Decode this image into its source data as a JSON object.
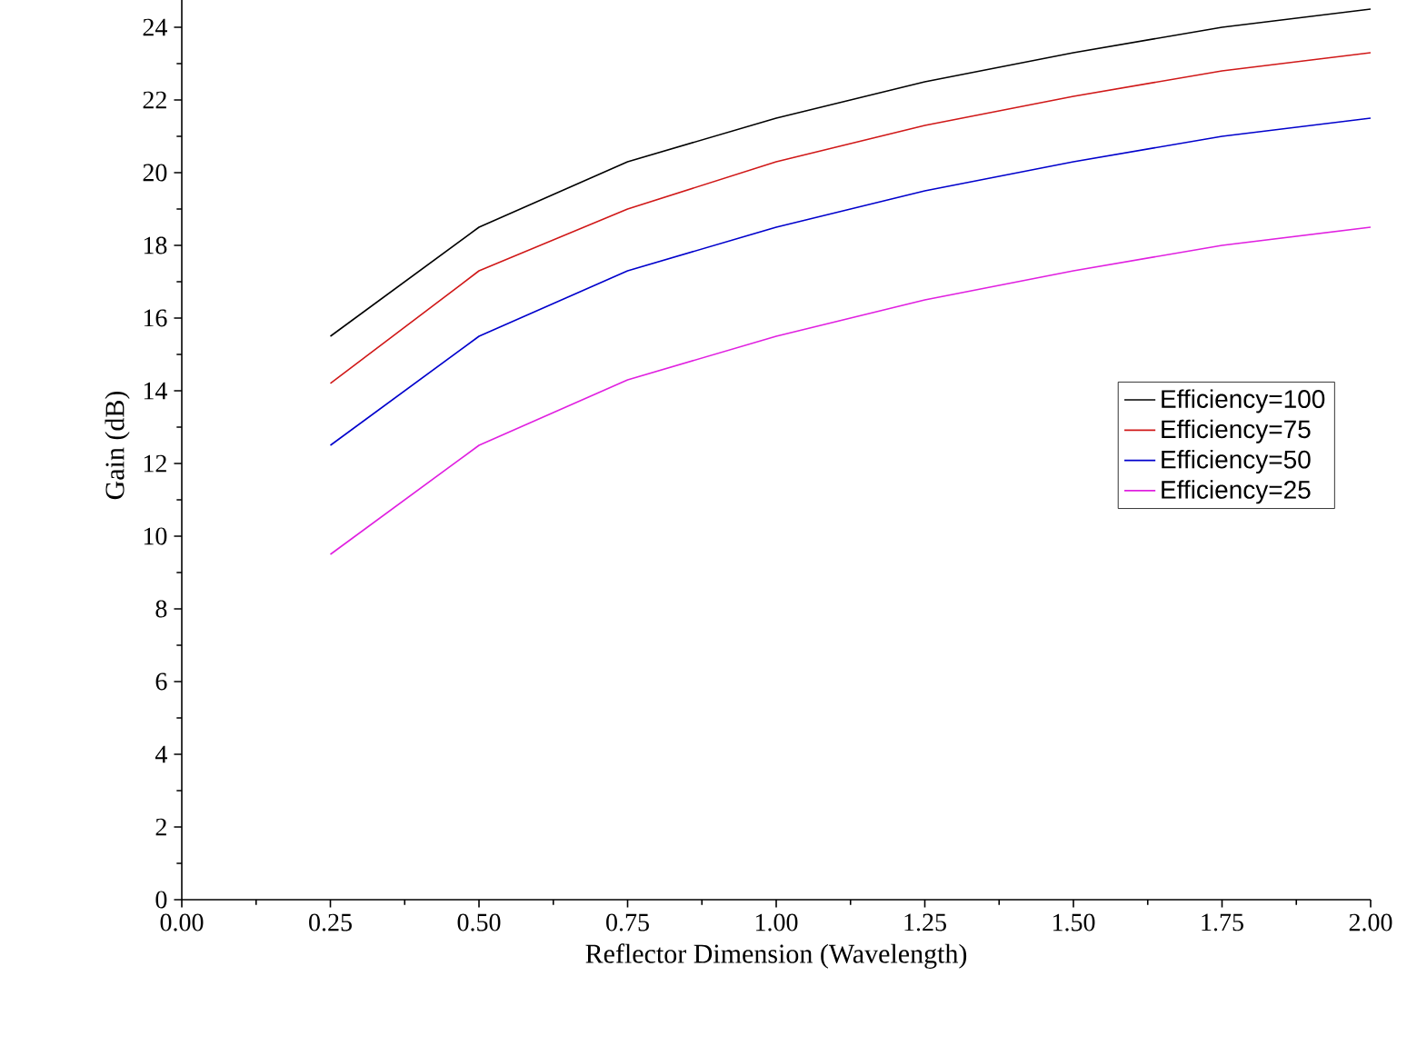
{
  "chart_data": {
    "type": "line",
    "xlabel": "Reflector Dimension (Wavelength)",
    "ylabel": "Gain (dB)",
    "x": [
      0.25,
      0.5,
      0.75,
      1.0,
      1.25,
      1.5,
      1.75,
      2.0
    ],
    "series": [
      {
        "name": "Efficiency=100",
        "color": "#000000",
        "values": [
          15.5,
          18.5,
          20.3,
          21.5,
          22.5,
          23.3,
          24.0,
          24.5
        ]
      },
      {
        "name": "Efficiency=75",
        "color": "#d01818",
        "values": [
          14.2,
          17.3,
          19.0,
          20.3,
          21.3,
          22.1,
          22.8,
          23.3
        ]
      },
      {
        "name": "Efficiency=50",
        "color": "#0000cc",
        "values": [
          12.5,
          15.5,
          17.3,
          18.5,
          19.5,
          20.3,
          21.0,
          21.5
        ]
      },
      {
        "name": "Efficiency=25",
        "color": "#e020e0",
        "values": [
          9.5,
          12.5,
          14.3,
          15.5,
          16.5,
          17.3,
          18.0,
          18.5
        ]
      }
    ],
    "xlim": [
      0,
      2
    ],
    "xticks": [
      {
        "value": 0,
        "label": "0.00"
      },
      {
        "value": 0.25,
        "label": "0.25"
      },
      {
        "value": 0.5,
        "label": "0.50"
      },
      {
        "value": 0.75,
        "label": "0.75"
      },
      {
        "value": 1,
        "label": "1.00"
      },
      {
        "value": 1.25,
        "label": "1.25"
      },
      {
        "value": 1.5,
        "label": "1.50"
      },
      {
        "value": 1.75,
        "label": "1.75"
      },
      {
        "value": 2,
        "label": "2.00"
      }
    ],
    "ylim": [
      0,
      25
    ],
    "yticks": [
      0,
      2,
      4,
      6,
      8,
      10,
      12,
      14,
      16,
      18,
      20,
      22,
      24
    ],
    "legend": "right",
    "grid": false,
    "marker": "none",
    "line_style": "solid"
  }
}
